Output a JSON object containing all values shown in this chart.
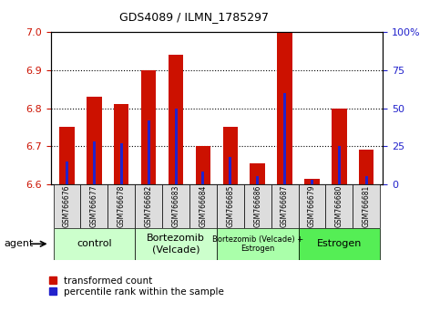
{
  "title": "GDS4089 / ILMN_1785297",
  "samples": [
    "GSM766676",
    "GSM766677",
    "GSM766678",
    "GSM766682",
    "GSM766683",
    "GSM766684",
    "GSM766685",
    "GSM766686",
    "GSM766687",
    "GSM766679",
    "GSM766680",
    "GSM766681"
  ],
  "transformed_count": [
    6.75,
    6.83,
    6.81,
    6.9,
    6.94,
    6.7,
    6.75,
    6.655,
    7.0,
    6.615,
    6.8,
    6.69
  ],
  "percentile_rank": [
    15,
    28,
    27,
    42,
    50,
    8,
    18,
    5,
    60,
    3,
    25,
    5
  ],
  "ylim_left": [
    6.6,
    7.0
  ],
  "ylim_right": [
    0,
    100
  ],
  "yticks_left": [
    6.6,
    6.7,
    6.8,
    6.9,
    7.0
  ],
  "yticks_right": [
    0,
    25,
    50,
    75,
    100
  ],
  "dotted_lines": [
    6.9,
    6.8,
    6.7
  ],
  "group_defs": [
    {
      "label": "control",
      "start": 0,
      "end": 2,
      "color": "#ccffcc",
      "fontsize": 8
    },
    {
      "label": "Bortezomib\n(Velcade)",
      "start": 3,
      "end": 5,
      "color": "#ccffcc",
      "fontsize": 8
    },
    {
      "label": "Bortezomib (Velcade) +\nEstrogen",
      "start": 6,
      "end": 8,
      "color": "#aaffaa",
      "fontsize": 6
    },
    {
      "label": "Estrogen",
      "start": 9,
      "end": 11,
      "color": "#55ee55",
      "fontsize": 8
    }
  ],
  "bar_color": "#cc1100",
  "percentile_color": "#2222cc",
  "background_plot": "#ffffff",
  "legend_items": [
    "transformed count",
    "percentile rank within the sample"
  ]
}
